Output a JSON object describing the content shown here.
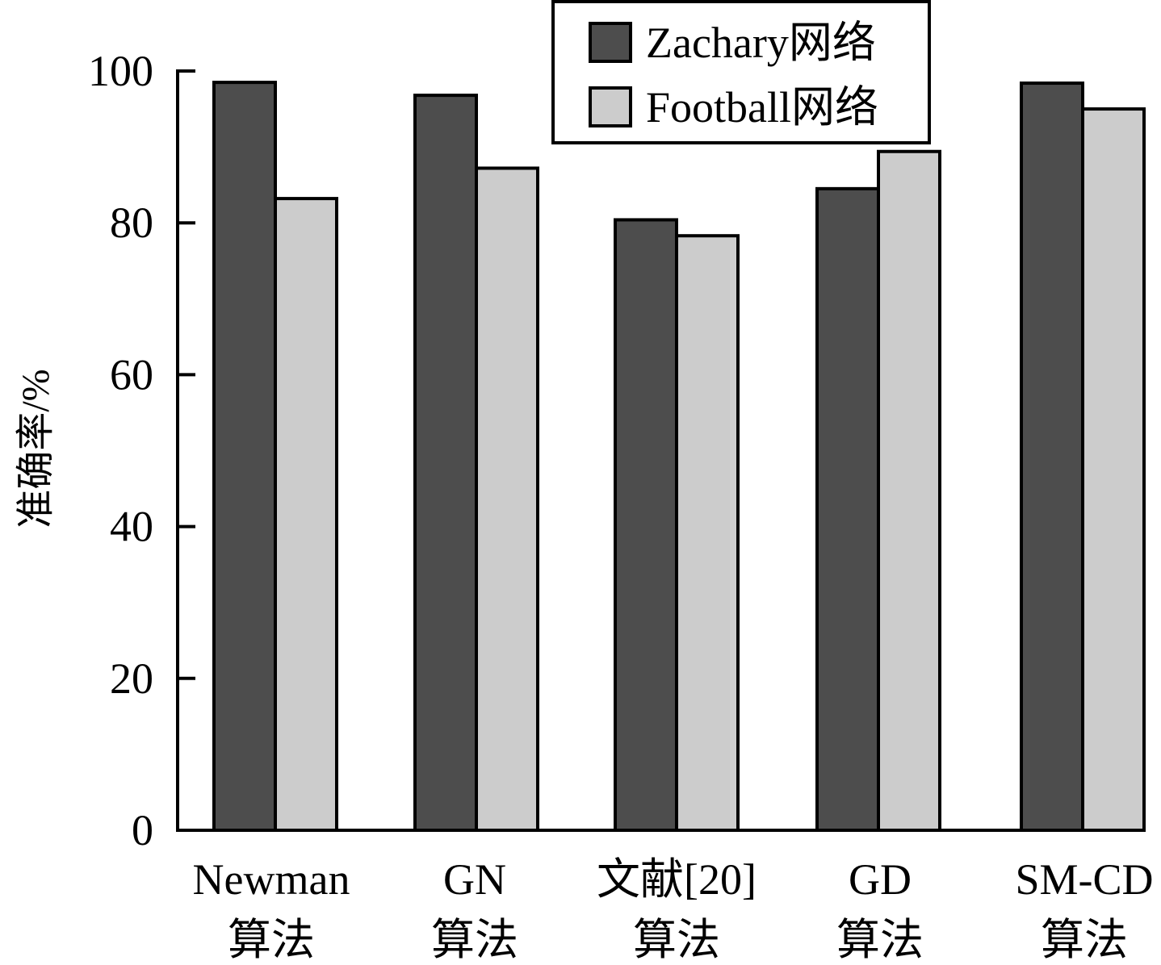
{
  "chart_data": {
    "type": "bar",
    "categories": [
      [
        "Newman",
        "算法"
      ],
      [
        "GN",
        "算法"
      ],
      [
        "文献[20]",
        "算法"
      ],
      [
        "GD",
        "算法"
      ],
      [
        "SM-CD",
        "算法"
      ]
    ],
    "series": [
      {
        "name": "Zachary网络",
        "color": "#4d4d4d",
        "values": [
          98.5,
          96.8,
          80.4,
          84.5,
          98.4
        ]
      },
      {
        "name": "Football网络",
        "color": "#cccccc",
        "values": [
          83.2,
          87.2,
          78.3,
          89.4,
          95.0
        ]
      }
    ],
    "xlabel": "",
    "ylabel": "准确率/%",
    "ylim": [
      0,
      100
    ],
    "yticks": [
      0,
      20,
      40,
      60,
      80,
      100
    ],
    "grid": false,
    "legend_position": "top-right"
  }
}
